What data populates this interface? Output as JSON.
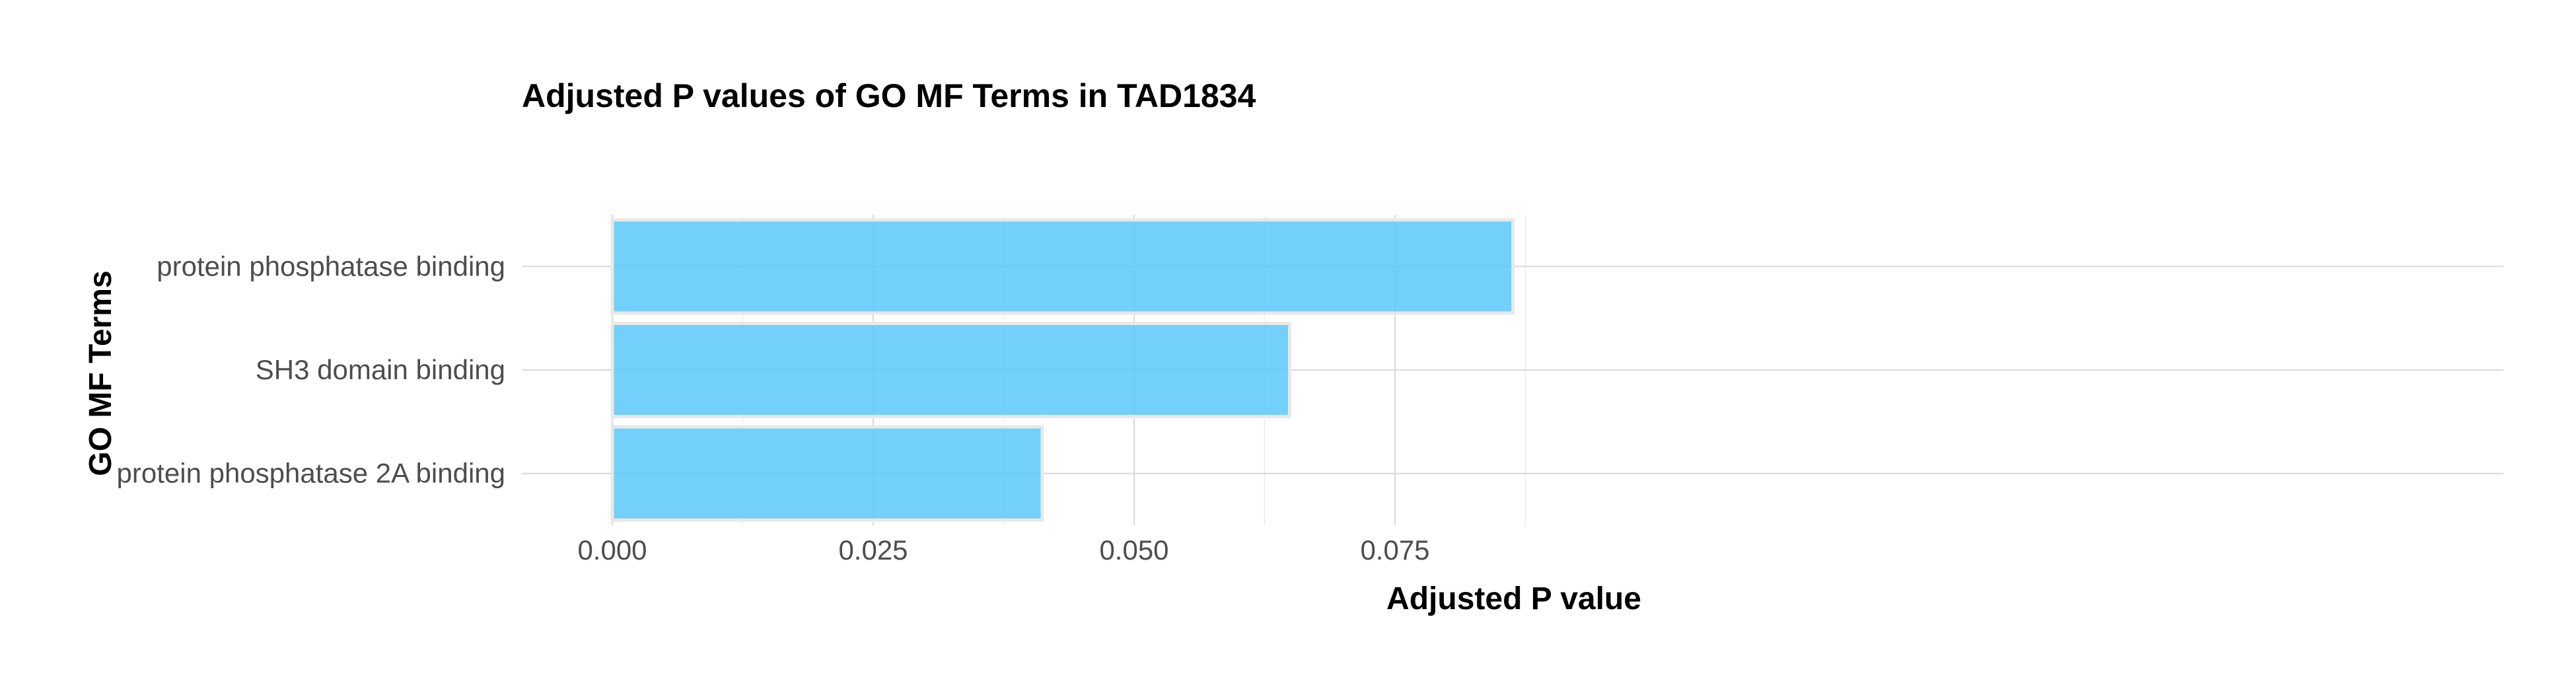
{
  "chart_data": {
    "type": "bar",
    "orientation": "horizontal",
    "title": "Adjusted P values of GO MF Terms in TAD1834",
    "xlabel": "Adjusted P value",
    "ylabel": "GO MF Terms",
    "categories": [
      "protein phosphatase binding",
      "SH3 domain binding",
      "protein phosphatase 2A binding"
    ],
    "values": [
      0.0863,
      0.0649,
      0.0412
    ],
    "xlim": [
      0,
      0.0906
    ],
    "xticks": [
      0,
      0.025,
      0.05,
      0.075
    ],
    "xtick_labels": [
      "0.000",
      "0.025",
      "0.050",
      "0.075"
    ],
    "grid": true,
    "legend": "none",
    "bar_color": "#5BC8FA",
    "bar_outline": "#E8E8E8"
  }
}
